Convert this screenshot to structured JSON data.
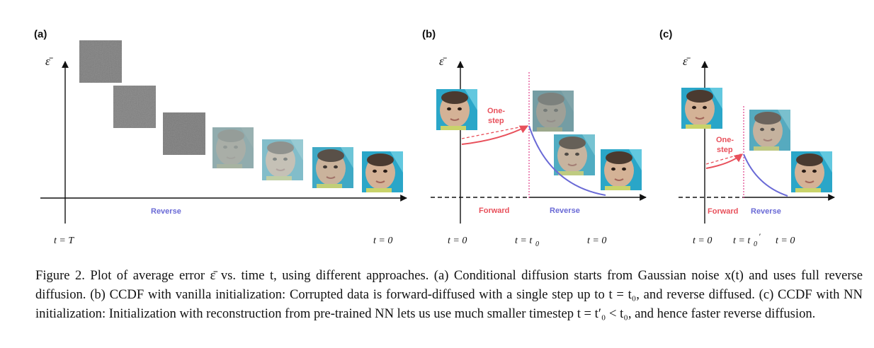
{
  "figure": {
    "panels": [
      {
        "label": "(a)",
        "y_axis_label": "ε̄",
        "flow_labels": {
          "reverse": "Reverse"
        },
        "time_labels": [
          "t = T",
          "t = 0"
        ]
      },
      {
        "label": "(b)",
        "y_axis_label": "ε̄",
        "annotation": [
          "One-",
          "step"
        ],
        "flow_labels": {
          "forward": "Forward",
          "reverse": "Reverse"
        },
        "time_labels": [
          "t = 0",
          "t = t",
          "0",
          "t = 0"
        ]
      },
      {
        "label": "(c)",
        "y_axis_label": "ε̄",
        "annotation": [
          "One-",
          "step"
        ],
        "flow_labels": {
          "forward": "Forward",
          "reverse": "Reverse"
        },
        "time_labels": [
          "t = 0",
          "t = t",
          "0",
          "′",
          "t = 0"
        ]
      }
    ],
    "colors": {
      "reverse": "#6a6ad6",
      "forward": "#e8505b",
      "dotted_line": "#e0408a",
      "axis": "#111111",
      "noise": "#7a7a7a",
      "baby_skin": "#c9a98f",
      "baby_bg": "#2aa6c8"
    },
    "caption": "Figure 2. Plot of average error ε̄ vs. time t, using different approaches. (a) Conditional diffusion starts from Gaussian noise x(t) and uses full reverse diffusion. (b) CCDF with vanilla initialization: Corrupted data is forward-diffused with a single step up to t = t₀, and reverse diffused. (c) CCDF with NN initialization: Initialization with reconstruction from pre-trained NN lets us use much smaller timestep t = t′₀ < t₀, and hence faster reverse diffusion."
  }
}
